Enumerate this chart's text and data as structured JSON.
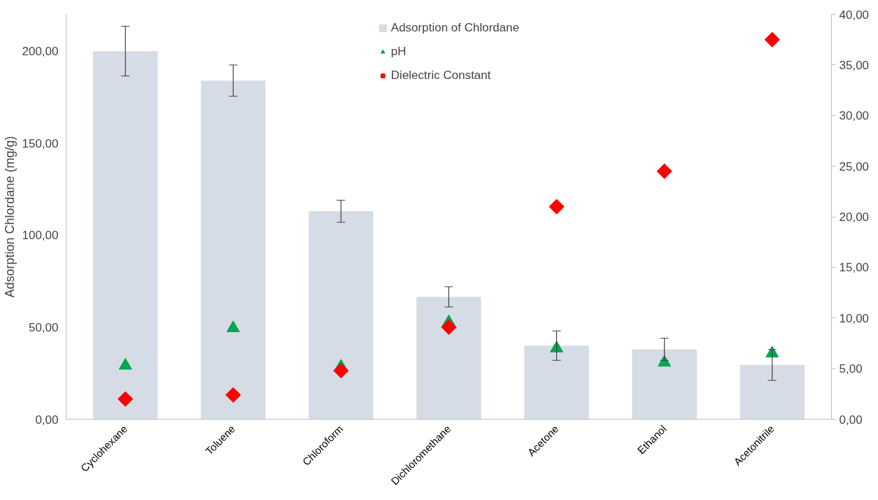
{
  "chart_data": {
    "type": "bar",
    "categories": [
      "Cyclohexane",
      "Toluene",
      "Chloroform",
      "Dichloromethane",
      "Acetone",
      "Ethanol",
      "Acetonitrile"
    ],
    "ylabel": "Adsorption Chlordane (mg/g)",
    "ylim": [
      0,
      220
    ],
    "yticks": [
      {
        "value": 0,
        "label": "0,00"
      },
      {
        "value": 50,
        "label": "50,00"
      },
      {
        "value": 100,
        "label": "100,00"
      },
      {
        "value": 150,
        "label": "150,00"
      },
      {
        "value": 200,
        "label": "200,00"
      }
    ],
    "y2lim": [
      0,
      40
    ],
    "y2ticks": [
      {
        "value": 0,
        "label": "0,00"
      },
      {
        "value": 5,
        "label": "5,00"
      },
      {
        "value": 10,
        "label": "10,00"
      },
      {
        "value": 15,
        "label": "15,00"
      },
      {
        "value": 20,
        "label": "20,00"
      },
      {
        "value": 25,
        "label": "25,00"
      },
      {
        "value": 30,
        "label": "30,00"
      },
      {
        "value": 35,
        "label": "35,00"
      },
      {
        "value": 40,
        "label": "40,00"
      }
    ],
    "series": [
      {
        "name": "Adsorption of Chlordane",
        "color": "#d6dce5",
        "values": [
          200,
          184,
          113,
          66.5,
          40,
          38,
          29.5
        ],
        "errors": [
          13.5,
          8.5,
          6,
          5.5,
          8,
          6,
          8.4
        ]
      },
      {
        "name": "pH",
        "type": "scatter",
        "axis": "y2",
        "marker": "triangle",
        "color": "#00a651",
        "values": [
          5.3,
          9.0,
          5.2,
          9.6,
          7.0,
          5.6,
          6.5
        ]
      },
      {
        "name": "Dielectric Constant",
        "type": "scatter",
        "axis": "y2",
        "marker": "diamond",
        "color": "#ff0000",
        "values": [
          2.0,
          2.4,
          4.8,
          9.1,
          21.0,
          24.5,
          37.5
        ]
      }
    ],
    "legend": "top",
    "grid": false
  }
}
